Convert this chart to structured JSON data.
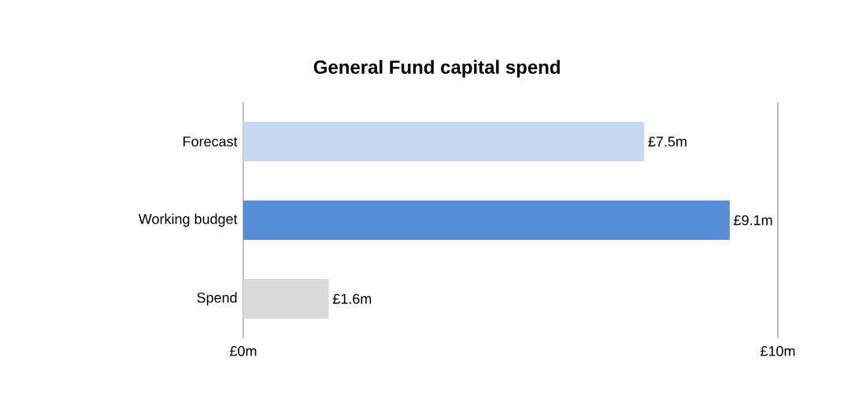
{
  "chart_data": {
    "type": "bar",
    "orientation": "horizontal",
    "title": "General Fund capital spend",
    "categories": [
      "Forecast",
      "Working budget",
      "Spend"
    ],
    "values": [
      7.5,
      9.1,
      1.6
    ],
    "colors": [
      "#c6d9f1",
      "#558ed5",
      "#d9d9d9"
    ],
    "value_labels": [
      "£7.5m",
      "£9.1m",
      "£1.6m"
    ],
    "xlim": [
      0,
      10
    ],
    "xticks": [
      {
        "value": 0,
        "label": "£0m"
      },
      {
        "value": 10,
        "label": "£10m"
      }
    ],
    "grid": false
  }
}
